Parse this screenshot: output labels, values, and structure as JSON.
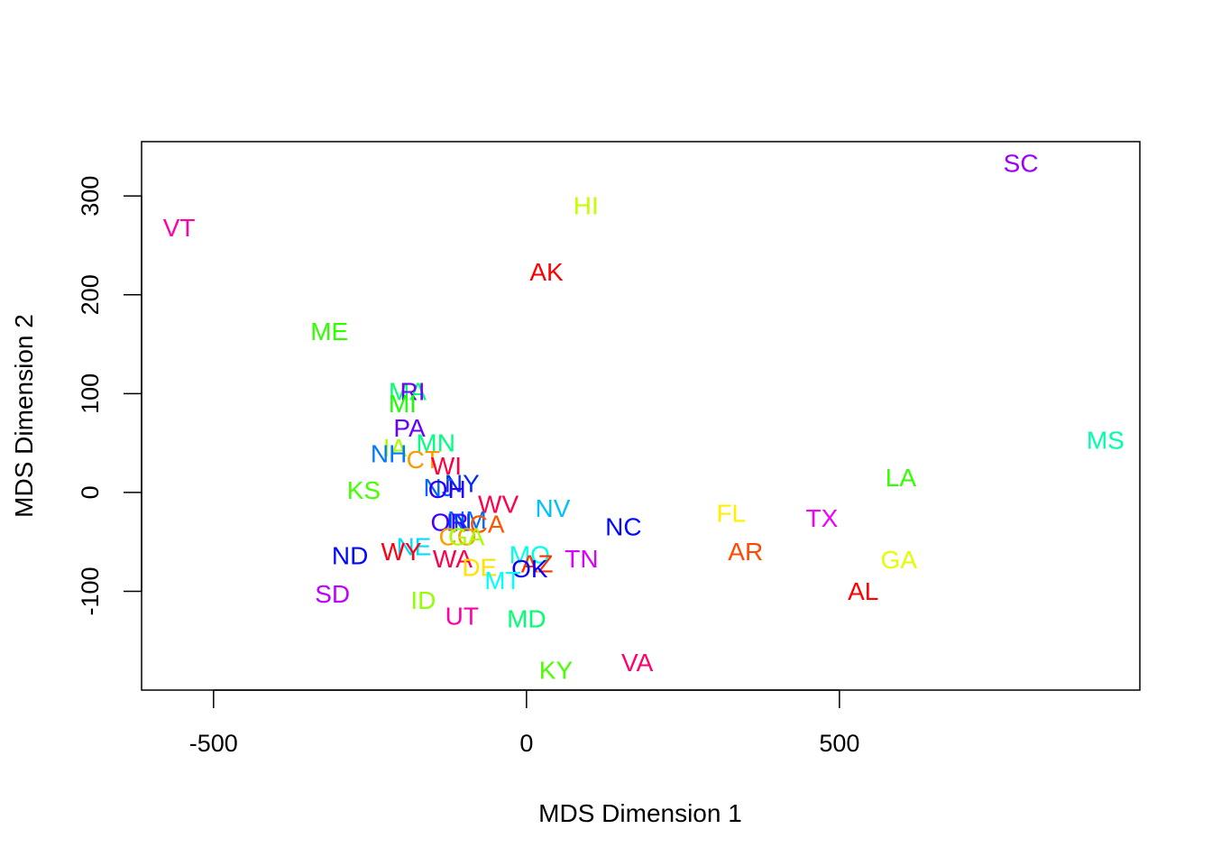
{
  "chart_data": {
    "type": "scatter",
    "title": "",
    "xlabel": "MDS Dimension 1",
    "ylabel": "MDS Dimension 2",
    "xlim": [
      -615,
      980
    ],
    "ylim": [
      -200,
      355
    ],
    "grid": false,
    "legend": "none",
    "x_ticks": [
      -500,
      0,
      500
    ],
    "x_tick_labels": [
      "-500",
      "0",
      "500"
    ],
    "y_ticks": [
      -100,
      0,
      100,
      200,
      300
    ],
    "y_tick_labels": [
      "-100",
      "0",
      "100",
      "200",
      "300"
    ],
    "points": [
      {
        "label": "VT",
        "x": -555,
        "y": 268,
        "color": "#FF00A8"
      },
      {
        "label": "SC",
        "x": 790,
        "y": 333,
        "color": "#9B00FF"
      },
      {
        "label": "HI",
        "x": 95,
        "y": 290,
        "color": "#C4FF00"
      },
      {
        "label": "AK",
        "x": 32,
        "y": 223,
        "color": "#FF0000"
      },
      {
        "label": "ME",
        "x": -315,
        "y": 163,
        "color": "#2FFF00"
      },
      {
        "label": "MA",
        "x": -190,
        "y": 102,
        "color": "#00FF71"
      },
      {
        "label": "RI",
        "x": -182,
        "y": 102,
        "color": "#7500FF"
      },
      {
        "label": "MI",
        "x": -198,
        "y": 90,
        "color": "#1BFF00"
      },
      {
        "label": "PA",
        "x": -187,
        "y": 65,
        "color": "#6700FF"
      },
      {
        "label": "MS",
        "x": 925,
        "y": 53,
        "color": "#00FFA9"
      },
      {
        "label": "MN",
        "x": -145,
        "y": 50,
        "color": "#00FF83"
      },
      {
        "label": "IA",
        "x": -210,
        "y": 45,
        "color": "#A9FF00"
      },
      {
        "label": "NH",
        "x": -220,
        "y": 39,
        "color": "#0078FF"
      },
      {
        "label": "CT",
        "x": -165,
        "y": 33,
        "color": "#FF9800"
      },
      {
        "label": "WI",
        "x": -128,
        "y": 27,
        "color": "#FF003F"
      },
      {
        "label": "NY",
        "x": -103,
        "y": 9,
        "color": "#0029FF"
      },
      {
        "label": "NJ",
        "x": -140,
        "y": 5,
        "color": "#0066FF"
      },
      {
        "label": "OH",
        "x": -127,
        "y": 3,
        "color": "#2900FF"
      },
      {
        "label": "LA",
        "x": 598,
        "y": 15,
        "color": "#32FF00"
      },
      {
        "label": "KS",
        "x": -260,
        "y": 2,
        "color": "#46FF00"
      },
      {
        "label": "WV",
        "x": -45,
        "y": -12,
        "color": "#FF0046"
      },
      {
        "label": "NV",
        "x": 42,
        "y": -16,
        "color": "#00C0FF"
      },
      {
        "label": "NM",
        "x": -95,
        "y": -28,
        "color": "#0069FF"
      },
      {
        "label": "OR",
        "x": -123,
        "y": -30,
        "color": "#4300FF"
      },
      {
        "label": "IN",
        "x": -108,
        "y": -30,
        "color": "#0038FF"
      },
      {
        "label": "CA",
        "x": -63,
        "y": -32,
        "color": "#FF5500"
      },
      {
        "label": "NC",
        "x": 155,
        "y": -35,
        "color": "#0008FF"
      },
      {
        "label": "FL",
        "x": 327,
        "y": -21,
        "color": "#FFF000"
      },
      {
        "label": "TX",
        "x": 472,
        "y": -26,
        "color": "#EF00FF"
      },
      {
        "label": "CO",
        "x": -110,
        "y": -45,
        "color": "#FF9E00"
      },
      {
        "label": "GA",
        "x": -96,
        "y": -45,
        "color": "#A3FF00"
      },
      {
        "label": "NE",
        "x": -180,
        "y": -55,
        "color": "#00DEFF"
      },
      {
        "label": "WY",
        "x": -200,
        "y": -60,
        "color": "#FF0012"
      },
      {
        "label": "AR",
        "x": 350,
        "y": -60,
        "color": "#FF4800"
      },
      {
        "label": "ND",
        "x": -282,
        "y": -64,
        "color": "#0008FF"
      },
      {
        "label": "WA",
        "x": -118,
        "y": -67,
        "color": "#FF004D"
      },
      {
        "label": "MO",
        "x": 5,
        "y": -63,
        "color": "#00FFE4"
      },
      {
        "label": "AZ",
        "x": 17,
        "y": -72,
        "color": "#FF3000"
      },
      {
        "label": "TN",
        "x": 88,
        "y": -67,
        "color": "#DA00FF"
      },
      {
        "label": "GA",
        "x": 595,
        "y": -68,
        "color": "#E2FF00"
      },
      {
        "label": "DE",
        "x": -75,
        "y": -76,
        "color": "#FFE200"
      },
      {
        "label": "OK",
        "x": 5,
        "y": -77,
        "color": "#0800FF"
      },
      {
        "label": "MT",
        "x": -38,
        "y": -89,
        "color": "#00FFFF"
      },
      {
        "label": "AL",
        "x": 538,
        "y": -100,
        "color": "#FF0000"
      },
      {
        "label": "SD",
        "x": -310,
        "y": -103,
        "color": "#C000FF"
      },
      {
        "label": "ID",
        "x": -165,
        "y": -109,
        "color": "#94FF00"
      },
      {
        "label": "UT",
        "x": -103,
        "y": -125,
        "color": "#FF00A8"
      },
      {
        "label": "MD",
        "x": 0,
        "y": -128,
        "color": "#00FF71"
      },
      {
        "label": "VA",
        "x": 177,
        "y": -172,
        "color": "#FF006C"
      },
      {
        "label": "KY",
        "x": 47,
        "y": -180,
        "color": "#49FF00"
      }
    ]
  }
}
